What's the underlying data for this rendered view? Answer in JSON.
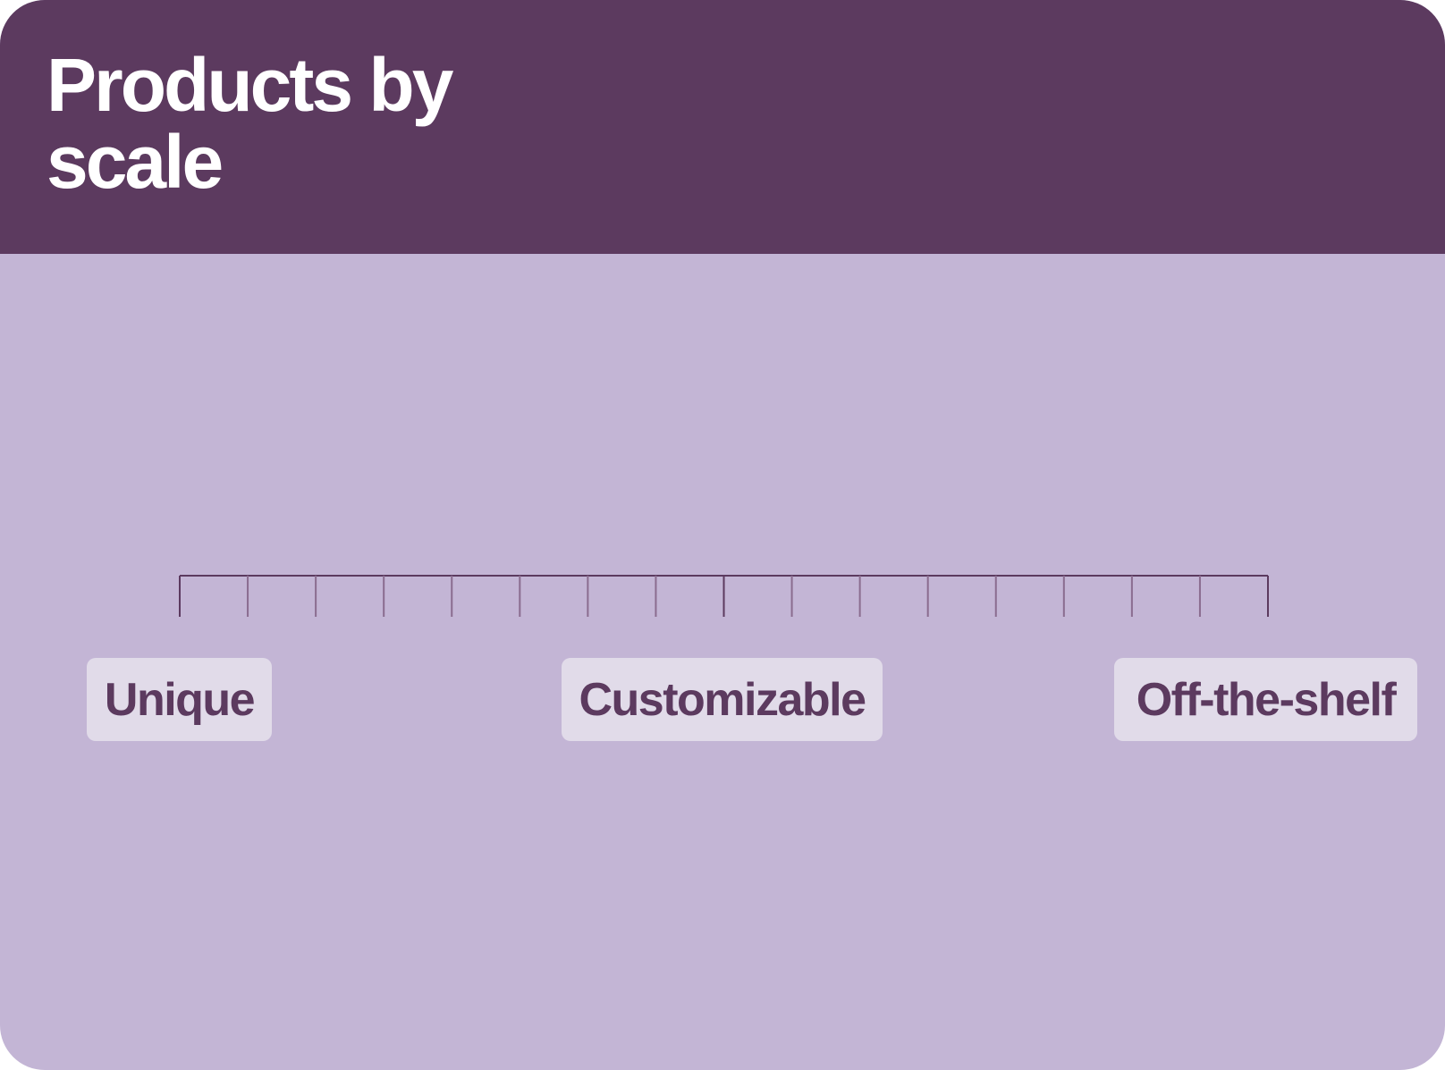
{
  "header": {
    "title": "Products by scale"
  },
  "scale": {
    "labels": [
      "Unique",
      "Customizable",
      "Off-the-shelf"
    ],
    "major_tick_count": 3,
    "minor_ticks_between_majors": 7
  },
  "colors": {
    "header_bg": "#5c3a5f",
    "body_bg": "#c3b5d5",
    "chip_bg": "#e1dbe9",
    "chip_text": "#5c3a5f",
    "major_tick": "#5c3a5f",
    "minor_tick": "#8a6c8f"
  }
}
